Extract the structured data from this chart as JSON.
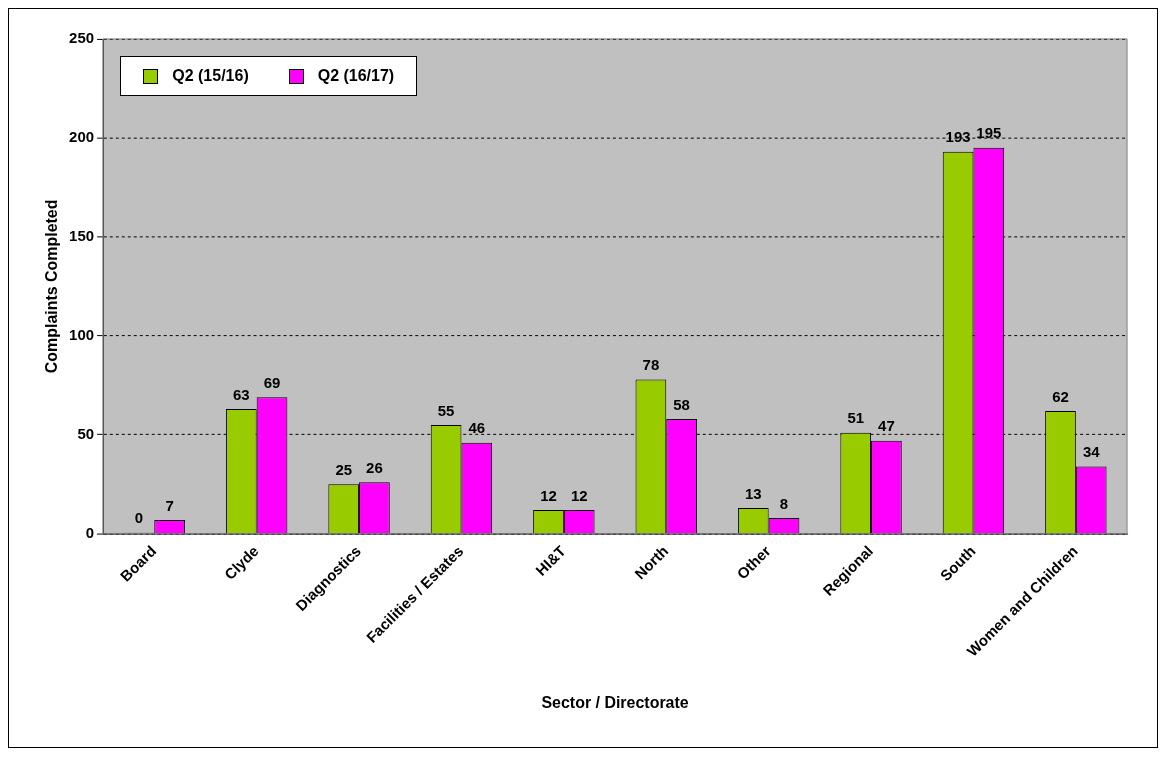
{
  "chart_data": {
    "type": "bar",
    "xlabel": "Sector / Directorate",
    "ylabel": "Complaints Completed",
    "categories": [
      "Board",
      "Clyde",
      "Diagnostics",
      "Facilities / Estates",
      "HI&T",
      "North",
      "Other",
      "Regional",
      "South",
      "Women and Children"
    ],
    "series": [
      {
        "name": "Q2 (15/16)",
        "color": "#99cc00",
        "values": [
          0,
          63,
          25,
          55,
          12,
          78,
          13,
          51,
          193,
          62
        ]
      },
      {
        "name": "Q2 (16/17)",
        "color": "#ff00ff",
        "values": [
          7,
          69,
          26,
          46,
          12,
          58,
          8,
          47,
          195,
          34
        ]
      }
    ],
    "ylim": [
      0,
      250
    ],
    "yticks": [
      0,
      50,
      100,
      150,
      200,
      250
    ],
    "grid": "y",
    "legend": "top left",
    "data_labels": true
  }
}
